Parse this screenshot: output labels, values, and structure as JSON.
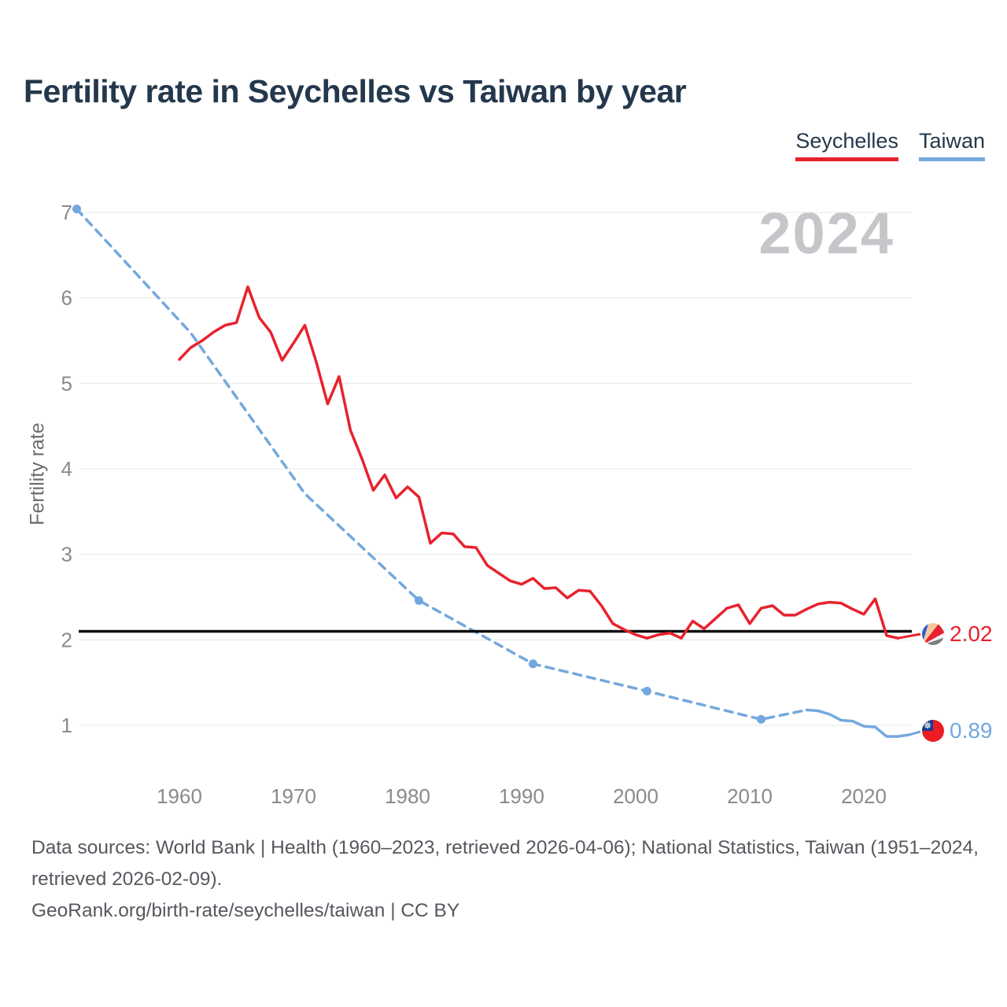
{
  "header": {
    "title": "Fertility rate in Seychelles vs Taiwan by year"
  },
  "legend": {
    "items": [
      {
        "label": "Seychelles",
        "color": "#e8222d"
      },
      {
        "label": "Taiwan",
        "color": "#73a8de"
      }
    ]
  },
  "watermark": "2024",
  "chart_data": {
    "type": "line",
    "title": "Fertility rate in Seychelles vs Taiwan by year",
    "xlabel": "",
    "ylabel": "Fertility rate",
    "x_ticks": [
      1960,
      1970,
      1980,
      1990,
      2000,
      2010,
      2020
    ],
    "y_ticks": [
      1,
      2,
      3,
      4,
      5,
      6,
      7
    ],
    "xlim": [
      1951,
      2024.5
    ],
    "ylim": [
      0.6,
      7.05
    ],
    "grid": "horizontal",
    "legend_position": "top-right",
    "replacement_level_line": 2.1,
    "series": [
      {
        "name": "Seychelles",
        "color": "#e8222d",
        "style": "solid",
        "end_label": "2.02",
        "points": [
          [
            1960,
            5.28
          ],
          [
            1961,
            5.42
          ],
          [
            1962,
            5.5
          ],
          [
            1963,
            5.6
          ],
          [
            1964,
            5.68
          ],
          [
            1965,
            5.71
          ],
          [
            1966,
            6.13
          ],
          [
            1967,
            5.77
          ],
          [
            1968,
            5.6
          ],
          [
            1969,
            5.27
          ],
          [
            1970,
            5.47
          ],
          [
            1971,
            5.68
          ],
          [
            1972,
            5.25
          ],
          [
            1973,
            4.76
          ],
          [
            1974,
            5.08
          ],
          [
            1975,
            4.45
          ],
          [
            1976,
            4.12
          ],
          [
            1977,
            3.75
          ],
          [
            1978,
            3.93
          ],
          [
            1979,
            3.66
          ],
          [
            1980,
            3.79
          ],
          [
            1981,
            3.67
          ],
          [
            1982,
            3.13
          ],
          [
            1983,
            3.25
          ],
          [
            1984,
            3.24
          ],
          [
            1985,
            3.09
          ],
          [
            1986,
            3.08
          ],
          [
            1987,
            2.87
          ],
          [
            1988,
            2.78
          ],
          [
            1989,
            2.69
          ],
          [
            1990,
            2.65
          ],
          [
            1991,
            2.72
          ],
          [
            1992,
            2.6
          ],
          [
            1993,
            2.61
          ],
          [
            1994,
            2.49
          ],
          [
            1995,
            2.58
          ],
          [
            1996,
            2.57
          ],
          [
            1997,
            2.4
          ],
          [
            1998,
            2.19
          ],
          [
            1999,
            2.12
          ],
          [
            2000,
            2.06
          ],
          [
            2001,
            2.02
          ],
          [
            2002,
            2.06
          ],
          [
            2003,
            2.08
          ],
          [
            2004,
            2.02
          ],
          [
            2005,
            2.22
          ],
          [
            2006,
            2.13
          ],
          [
            2007,
            2.25
          ],
          [
            2008,
            2.37
          ],
          [
            2009,
            2.41
          ],
          [
            2010,
            2.19
          ],
          [
            2011,
            2.37
          ],
          [
            2012,
            2.4
          ],
          [
            2013,
            2.29
          ],
          [
            2014,
            2.29
          ],
          [
            2015,
            2.36
          ],
          [
            2016,
            2.42
          ],
          [
            2017,
            2.44
          ],
          [
            2018,
            2.43
          ],
          [
            2019,
            2.36
          ],
          [
            2020,
            2.3
          ],
          [
            2021,
            2.48
          ],
          [
            2022,
            2.05
          ],
          [
            2023,
            2.02
          ]
        ]
      },
      {
        "name": "Taiwan",
        "color": "#73a8de",
        "style": "dashed interpolated, solid from 2015",
        "end_label": "0.89",
        "dashed_points": [
          [
            1951,
            7.04
          ],
          [
            1961,
            5.59
          ],
          [
            1971,
            3.71
          ],
          [
            1981,
            2.46
          ],
          [
            1991,
            1.72
          ],
          [
            2001,
            1.4
          ],
          [
            2011,
            1.07
          ],
          [
            2015,
            1.18
          ]
        ],
        "solid_points": [
          [
            2015,
            1.18
          ],
          [
            2016,
            1.17
          ],
          [
            2017,
            1.13
          ],
          [
            2018,
            1.06
          ],
          [
            2019,
            1.05
          ],
          [
            2020,
            0.99
          ],
          [
            2021,
            0.98
          ],
          [
            2022,
            0.87
          ],
          [
            2023,
            0.87
          ],
          [
            2024,
            0.89
          ]
        ],
        "marker_points": [
          [
            1951,
            7.04
          ],
          [
            1981,
            2.46
          ],
          [
            1991,
            1.72
          ],
          [
            2001,
            1.4
          ],
          [
            2011,
            1.07
          ]
        ]
      }
    ]
  },
  "footer": {
    "sources": "Data sources: World Bank | Health (1960–2023, retrieved 2026-04-06); National Statistics, Taiwan (1951–2024, retrieved 2026-02-09).",
    "attribution": "GeoRank.org/birth-rate/seychelles/taiwan | CC BY"
  }
}
